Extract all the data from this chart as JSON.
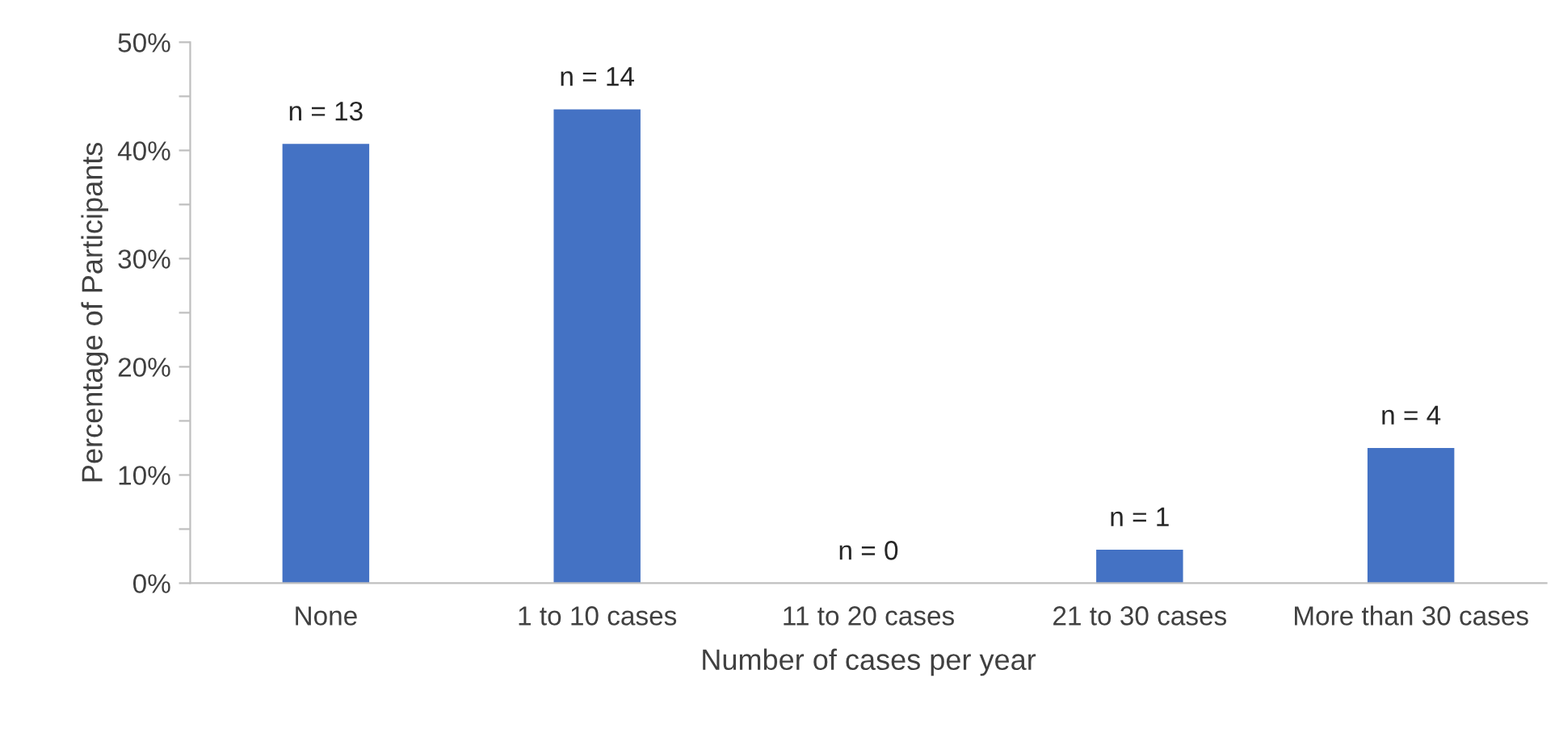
{
  "chart_data": {
    "type": "bar",
    "xlabel": "Number of cases per year",
    "ylabel": "Percentage of Participants",
    "categories": [
      "None",
      "1 to 10 cases",
      "11 to 20 cases",
      "21 to 30 cases",
      "More than 30 cases"
    ],
    "values": [
      40.6,
      43.8,
      0,
      3.1,
      12.5
    ],
    "annotations": [
      {
        "text": "n = 13",
        "x": "None",
        "y": 40.6
      },
      {
        "text": "n = 14",
        "x": "1 to 10 cases",
        "y": 43.8
      },
      {
        "text": "n = 0",
        "x": "11 to 20 cases",
        "y": 0
      },
      {
        "text": "n = 1",
        "x": "21 to 30 cases",
        "y": 3.1
      },
      {
        "text": "n = 4",
        "x": "More than 30 cases",
        "y": 12.5
      }
    ],
    "color": "#4472c4",
    "ylim": [
      0,
      50
    ],
    "yticks": [
      {
        "value": 0,
        "label": "0%"
      },
      {
        "value": 5,
        "label": null
      },
      {
        "value": 10,
        "label": "10%"
      },
      {
        "value": 15,
        "label": null
      },
      {
        "value": 20,
        "label": "20%"
      },
      {
        "value": 25,
        "label": null
      },
      {
        "value": 30,
        "label": "30%"
      },
      {
        "value": 35,
        "label": null
      },
      {
        "value": 40,
        "label": "40%"
      },
      {
        "value": 45,
        "label": null
      },
      {
        "value": 50,
        "label": "50%"
      }
    ],
    "grid": false,
    "legend": false
  }
}
